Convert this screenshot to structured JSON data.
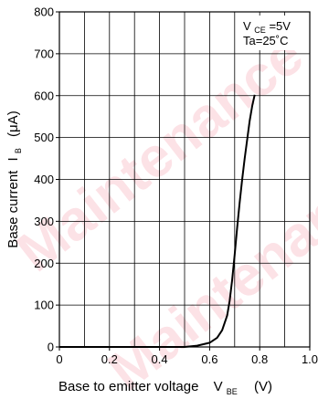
{
  "watermark": {
    "text": "Maintenance",
    "color": "#e8002a"
  },
  "chart_data": {
    "type": "line",
    "title": "",
    "xlabel": {
      "text": "Base to emitter voltage",
      "symbol": "V",
      "subscript": "BE",
      "unit": "(V)"
    },
    "ylabel": {
      "text": "Base current",
      "symbol": "I",
      "subscript": "B",
      "unit": "(μA)"
    },
    "xlim": [
      0,
      1.0
    ],
    "ylim": [
      0,
      800
    ],
    "xticks": [
      "0",
      "0.2",
      "0.4",
      "0.6",
      "0.8",
      "1.0"
    ],
    "yticks": [
      "0",
      "100",
      "200",
      "300",
      "400",
      "500",
      "600",
      "700",
      "800"
    ],
    "grid": true,
    "x_minor_divisions": 2,
    "annotation": {
      "line1_symbol": "V",
      "line1_subscript": "CE",
      "line1_value": "=5V",
      "line2": "Ta=25˚C"
    },
    "series": [
      {
        "x": [
          0.0,
          0.2,
          0.4,
          0.5,
          0.55,
          0.6,
          0.63,
          0.65,
          0.67,
          0.68,
          0.69,
          0.7,
          0.71,
          0.72,
          0.73,
          0.74,
          0.75,
          0.76,
          0.77,
          0.78
        ],
        "y": [
          0,
          0,
          0,
          0,
          3,
          10,
          22,
          40,
          75,
          110,
          160,
          220,
          285,
          345,
          400,
          450,
          495,
          540,
          575,
          602
        ]
      }
    ]
  }
}
